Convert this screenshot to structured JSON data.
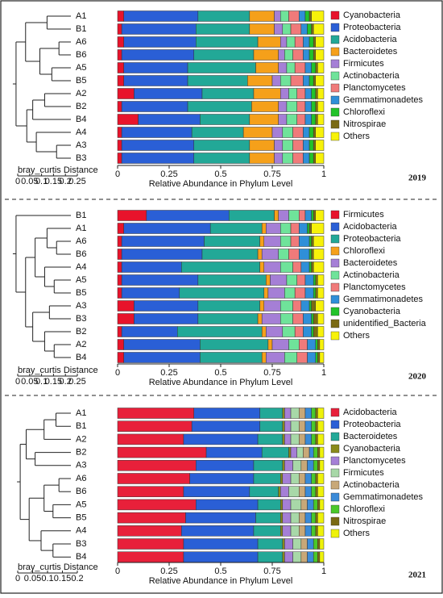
{
  "chart_data": [
    {
      "type": "bar",
      "title": "2019",
      "xlabel": "Relative Abundance in Phylum Level",
      "xlim": [
        0,
        1
      ],
      "xticks": [
        0,
        0.25,
        0.5,
        0.75,
        1
      ],
      "categories": [
        "A1",
        "B1",
        "A6",
        "B6",
        "A5",
        "B5",
        "A2",
        "B2",
        "B4",
        "A4",
        "A3",
        "B3"
      ],
      "series": [
        {
          "name": "Cyanobacteria",
          "color": "#e8132b",
          "values": [
            0.03,
            0.02,
            0.03,
            0.02,
            0.03,
            0.03,
            0.08,
            0.02,
            0.1,
            0.02,
            0.02,
            0.02
          ]
        },
        {
          "name": "Proteobacteria",
          "color": "#2a5fd6",
          "values": [
            0.36,
            0.36,
            0.35,
            0.35,
            0.31,
            0.31,
            0.33,
            0.32,
            0.3,
            0.34,
            0.35,
            0.35
          ]
        },
        {
          "name": "Acidobacteria",
          "color": "#22a897",
          "values": [
            0.25,
            0.26,
            0.3,
            0.29,
            0.33,
            0.29,
            0.25,
            0.31,
            0.24,
            0.25,
            0.27,
            0.27
          ]
        },
        {
          "name": "Bacteroidetes",
          "color": "#f5a01a",
          "values": [
            0.12,
            0.12,
            0.11,
            0.12,
            0.11,
            0.12,
            0.13,
            0.13,
            0.14,
            0.14,
            0.12,
            0.12
          ]
        },
        {
          "name": "Firmicutes",
          "color": "#a57fd6",
          "values": [
            0.03,
            0.04,
            0.03,
            0.03,
            0.04,
            0.04,
            0.04,
            0.04,
            0.04,
            0.05,
            0.04,
            0.04
          ]
        },
        {
          "name": "Actinobacteria",
          "color": "#6fe39a",
          "values": [
            0.04,
            0.04,
            0.04,
            0.04,
            0.04,
            0.05,
            0.04,
            0.05,
            0.05,
            0.05,
            0.05,
            0.05
          ]
        },
        {
          "name": "Planctomycetes",
          "color": "#f07a7a",
          "values": [
            0.05,
            0.05,
            0.04,
            0.05,
            0.05,
            0.06,
            0.04,
            0.04,
            0.04,
            0.05,
            0.05,
            0.05
          ]
        },
        {
          "name": "Gemmatimonadetes",
          "color": "#2f8fd8",
          "values": [
            0.03,
            0.03,
            0.03,
            0.03,
            0.03,
            0.03,
            0.03,
            0.03,
            0.03,
            0.03,
            0.03,
            0.03
          ]
        },
        {
          "name": "Chloroflexi",
          "color": "#22c32a",
          "values": [
            0.02,
            0.02,
            0.02,
            0.02,
            0.02,
            0.02,
            0.02,
            0.02,
            0.02,
            0.02,
            0.02,
            0.02
          ]
        },
        {
          "name": "Nitrospirae",
          "color": "#7a6a14",
          "values": [
            0.01,
            0.01,
            0.01,
            0.01,
            0.01,
            0.01,
            0.01,
            0.01,
            0.01,
            0.01,
            0.01,
            0.01
          ]
        },
        {
          "name": "Others",
          "color": "#f7f20a",
          "values": [
            0.06,
            0.05,
            0.04,
            0.04,
            0.03,
            0.04,
            0.03,
            0.03,
            0.03,
            0.04,
            0.04,
            0.04
          ]
        }
      ],
      "dendrogram": {
        "xlabel": "bray_curtis Distance",
        "xlim": [
          0,
          0.25
        ],
        "xticks": [
          0,
          0.05,
          0.1,
          0.15,
          0.2,
          0.25
        ],
        "tree": {
          "height": 0.23,
          "children": [
            {
              "height": 0.19,
              "children": [
                {
                  "height": 0.1,
                  "children": [
                    0,
                    1
                  ]
                },
                {
                  "height": 0.13,
                  "children": [
                    {
                      "height": 0.05,
                      "children": [
                        2,
                        3
                      ]
                    },
                    {
                      "height": 0.08,
                      "children": [
                        4,
                        5
                      ]
                    }
                  ]
                }
              ]
            },
            {
              "height": 0.185,
              "children": [
                {
                  "height": 0.16,
                  "children": [
                    {
                      "height": 0.11,
                      "children": [
                        6,
                        7
                      ]
                    },
                    8
                  ]
                },
                {
                  "height": 0.145,
                  "children": [
                    9,
                    {
                      "height": 0.06,
                      "children": [
                        10,
                        11
                      ]
                    }
                  ]
                }
              ]
            }
          ]
        }
      }
    },
    {
      "type": "bar",
      "title": "2020",
      "xlabel": "Relative Abundance in Phylum Level",
      "xlim": [
        0,
        1
      ],
      "xticks": [
        0,
        0.25,
        0.5,
        0.75,
        1
      ],
      "categories": [
        "B1",
        "A1",
        "A6",
        "B6",
        "A4",
        "A5",
        "B5",
        "A3",
        "B3",
        "B2",
        "A2",
        "B4"
      ],
      "series": [
        {
          "name": "Firmicutes",
          "color": "#e8132b",
          "values": [
            0.14,
            0.03,
            0.02,
            0.02,
            0.02,
            0.02,
            0.02,
            0.08,
            0.08,
            0.02,
            0.03,
            0.03
          ]
        },
        {
          "name": "Acidobacteria",
          "color": "#2a5fd6",
          "values": [
            0.4,
            0.42,
            0.4,
            0.39,
            0.29,
            0.37,
            0.28,
            0.31,
            0.31,
            0.27,
            0.37,
            0.37
          ]
        },
        {
          "name": "Proteobacteria",
          "color": "#22a897",
          "values": [
            0.22,
            0.25,
            0.27,
            0.27,
            0.38,
            0.33,
            0.41,
            0.3,
            0.29,
            0.41,
            0.33,
            0.3
          ]
        },
        {
          "name": "Chloroflexi",
          "color": "#f5a01a",
          "values": [
            0.02,
            0.02,
            0.02,
            0.02,
            0.02,
            0.02,
            0.02,
            0.02,
            0.02,
            0.02,
            0.02,
            0.02
          ]
        },
        {
          "name": "Bacteroidetes",
          "color": "#a57fd6",
          "values": [
            0.05,
            0.07,
            0.08,
            0.08,
            0.08,
            0.08,
            0.08,
            0.08,
            0.09,
            0.08,
            0.08,
            0.09
          ]
        },
        {
          "name": "Actinobacteria",
          "color": "#6fe39a",
          "values": [
            0.05,
            0.05,
            0.05,
            0.05,
            0.06,
            0.05,
            0.05,
            0.06,
            0.06,
            0.06,
            0.05,
            0.06
          ]
        },
        {
          "name": "Planctomycetes",
          "color": "#f07a7a",
          "values": [
            0.03,
            0.04,
            0.04,
            0.05,
            0.04,
            0.04,
            0.05,
            0.04,
            0.05,
            0.04,
            0.04,
            0.05
          ]
        },
        {
          "name": "Gemmatimonadetes",
          "color": "#2f8fd8",
          "values": [
            0.03,
            0.04,
            0.05,
            0.05,
            0.04,
            0.04,
            0.04,
            0.04,
            0.04,
            0.04,
            0.04,
            0.04
          ]
        },
        {
          "name": "Cyanobacteria",
          "color": "#22c32a",
          "values": [
            0.01,
            0.01,
            0.01,
            0.01,
            0.01,
            0.01,
            0.01,
            0.01,
            0.01,
            0.01,
            0.01,
            0.01
          ]
        },
        {
          "name": "unidentified_Bacteria",
          "color": "#7a6a14",
          "values": [
            0.01,
            0.01,
            0.01,
            0.01,
            0.01,
            0.01,
            0.01,
            0.02,
            0.02,
            0.02,
            0.01,
            0.01
          ]
        },
        {
          "name": "Others",
          "color": "#f7f20a",
          "values": [
            0.04,
            0.06,
            0.05,
            0.05,
            0.05,
            0.03,
            0.03,
            0.04,
            0.03,
            0.03,
            0.02,
            0.02
          ]
        }
      ],
      "dendrogram": {
        "xlabel": "bray_curtis Distance",
        "xlim": [
          0,
          0.25
        ],
        "xticks": [
          0,
          0.05,
          0.1,
          0.15,
          0.2,
          0.25
        ],
        "tree": {
          "height": 0.23,
          "children": [
            0,
            {
              "height": 0.19,
              "children": [
                {
                  "height": 0.15,
                  "children": [
                    {
                      "height": 0.1,
                      "children": [
                        1,
                        {
                          "height": 0.06,
                          "children": [
                            2,
                            3
                          ]
                        }
                      ]
                    },
                    {
                      "height": 0.11,
                      "children": [
                        4,
                        {
                          "height": 0.07,
                          "children": [
                            5,
                            6
                          ]
                        }
                      ]
                    }
                  ]
                },
                {
                  "height": 0.16,
                  "children": [
                    {
                      "height": 0.09,
                      "children": [
                        7,
                        8
                      ]
                    },
                    {
                      "height": 0.11,
                      "children": [
                        9,
                        {
                          "height": 0.07,
                          "children": [
                            10,
                            11
                          ]
                        }
                      ]
                    }
                  ]
                }
              ]
            }
          ]
        }
      }
    },
    {
      "type": "bar",
      "title": "2021",
      "xlabel": "Relative Abundance in Phylum Level",
      "xlim": [
        0,
        1
      ],
      "xticks": [
        0,
        0.25,
        0.5,
        0.75,
        1
      ],
      "categories": [
        "A1",
        "B1",
        "A2",
        "B2",
        "A3",
        "A6",
        "B6",
        "A5",
        "B5",
        "A4",
        "B3",
        "B4"
      ],
      "series": [
        {
          "name": "Acidobacteria",
          "color": "#e8203a",
          "values": [
            0.37,
            0.36,
            0.32,
            0.43,
            0.38,
            0.35,
            0.32,
            0.38,
            0.33,
            0.31,
            0.32,
            0.32
          ]
        },
        {
          "name": "Proteobacteria",
          "color": "#2a5fd6",
          "values": [
            0.32,
            0.33,
            0.36,
            0.27,
            0.28,
            0.31,
            0.32,
            0.3,
            0.34,
            0.35,
            0.36,
            0.36
          ]
        },
        {
          "name": "Bacteroidetes",
          "color": "#22a897",
          "values": [
            0.11,
            0.11,
            0.12,
            0.13,
            0.14,
            0.13,
            0.14,
            0.11,
            0.12,
            0.13,
            0.12,
            0.12
          ]
        },
        {
          "name": "Cyanobacteria",
          "color": "#8a8a1a",
          "values": [
            0.01,
            0.01,
            0.01,
            0.01,
            0.01,
            0.01,
            0.01,
            0.01,
            0.01,
            0.01,
            0.01,
            0.01
          ]
        },
        {
          "name": "Planctomycetes",
          "color": "#a57fd6",
          "values": [
            0.03,
            0.03,
            0.03,
            0.03,
            0.04,
            0.04,
            0.04,
            0.04,
            0.04,
            0.04,
            0.04,
            0.04
          ]
        },
        {
          "name": "Firmicutes",
          "color": "#a8d8a8",
          "values": [
            0.04,
            0.04,
            0.04,
            0.03,
            0.04,
            0.04,
            0.05,
            0.05,
            0.04,
            0.04,
            0.04,
            0.04
          ]
        },
        {
          "name": "Actinobacteria",
          "color": "#c8a878",
          "values": [
            0.03,
            0.03,
            0.03,
            0.03,
            0.03,
            0.03,
            0.03,
            0.03,
            0.03,
            0.03,
            0.03,
            0.03
          ]
        },
        {
          "name": "Gemmatimonadetes",
          "color": "#3a8ad8",
          "values": [
            0.03,
            0.03,
            0.03,
            0.02,
            0.03,
            0.03,
            0.03,
            0.03,
            0.03,
            0.03,
            0.03,
            0.03
          ]
        },
        {
          "name": "Chloroflexi",
          "color": "#4ac82a",
          "values": [
            0.02,
            0.02,
            0.02,
            0.02,
            0.02,
            0.02,
            0.02,
            0.02,
            0.02,
            0.02,
            0.02,
            0.02
          ]
        },
        {
          "name": "Nitrospirae",
          "color": "#7a6a14",
          "values": [
            0.01,
            0.01,
            0.01,
            0.01,
            0.01,
            0.01,
            0.01,
            0.01,
            0.01,
            0.01,
            0.01,
            0.01
          ]
        },
        {
          "name": "Others",
          "color": "#eef20a",
          "values": [
            0.03,
            0.03,
            0.03,
            0.02,
            0.02,
            0.03,
            0.03,
            0.02,
            0.03,
            0.03,
            0.02,
            0.02
          ]
        }
      ],
      "dendrogram": {
        "xlabel": "bray_curtis Distance",
        "xlim": [
          0,
          0.2
        ],
        "xticks": [
          0,
          0.05,
          0.1,
          0.15,
          0.2
        ],
        "tree": {
          "height": 0.17,
          "children": [
            {
              "height": 0.15,
              "children": [
                {
                  "height": 0.09,
                  "children": [
                    {
                      "height": 0.05,
                      "children": [
                        0,
                        1
                      ]
                    },
                    2
                  ]
                },
                {
                  "height": 0.12,
                  "children": [
                    3,
                    4
                  ]
                }
              ]
            },
            {
              "height": 0.14,
              "children": [
                {
                  "height": 0.09,
                  "children": [
                    {
                      "height": 0.04,
                      "children": [
                        5,
                        6
                      ]
                    },
                    {
                      "height": 0.06,
                      "children": [
                        7,
                        8
                      ]
                    }
                  ]
                },
                {
                  "height": 0.1,
                  "children": [
                    9,
                    {
                      "height": 0.06,
                      "children": [
                        10,
                        11
                      ]
                    }
                  ]
                }
              ]
            }
          ]
        }
      }
    }
  ]
}
